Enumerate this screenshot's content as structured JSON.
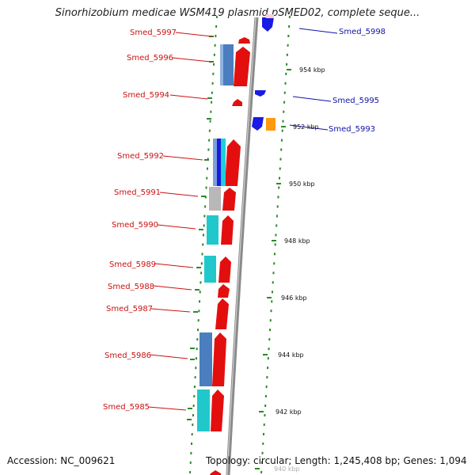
{
  "title": "Sinorhizobium medicae WSM419 plasmid pSMED02, complete seque...",
  "accession": "Accession: NC_009621",
  "topology": "Topology: circular; Length: 1,245,408 bp; Genes: 1,094",
  "colors": {
    "forward_label": "#cc1111",
    "reverse_label": "#1111aa",
    "backbone": "#888888",
    "ticks": "#2a8a2a"
  },
  "genes": [
    {
      "name": "Smed_5998",
      "strand": "reverse"
    },
    {
      "name": "Smed_5997",
      "strand": "forward"
    },
    {
      "name": "Smed_5996",
      "strand": "forward"
    },
    {
      "name": "Smed_5995",
      "strand": "reverse"
    },
    {
      "name": "Smed_5994",
      "strand": "forward"
    },
    {
      "name": "Smed_5993",
      "strand": "reverse"
    },
    {
      "name": "Smed_5992",
      "strand": "forward"
    },
    {
      "name": "Smed_5991",
      "strand": "forward"
    },
    {
      "name": "Smed_5990",
      "strand": "forward"
    },
    {
      "name": "Smed_5989",
      "strand": "forward"
    },
    {
      "name": "Smed_5988",
      "strand": "forward"
    },
    {
      "name": "Smed_5987",
      "strand": "forward"
    },
    {
      "name": "Smed_5986",
      "strand": "forward"
    },
    {
      "name": "Smed_5985",
      "strand": "forward"
    }
  ],
  "scale_ticks": [
    "954 kbp",
    "952 kbp",
    "950 kbp",
    "948 kbp",
    "946 kbp",
    "944 kbp",
    "942 kbp",
    "940 kbp"
  ]
}
